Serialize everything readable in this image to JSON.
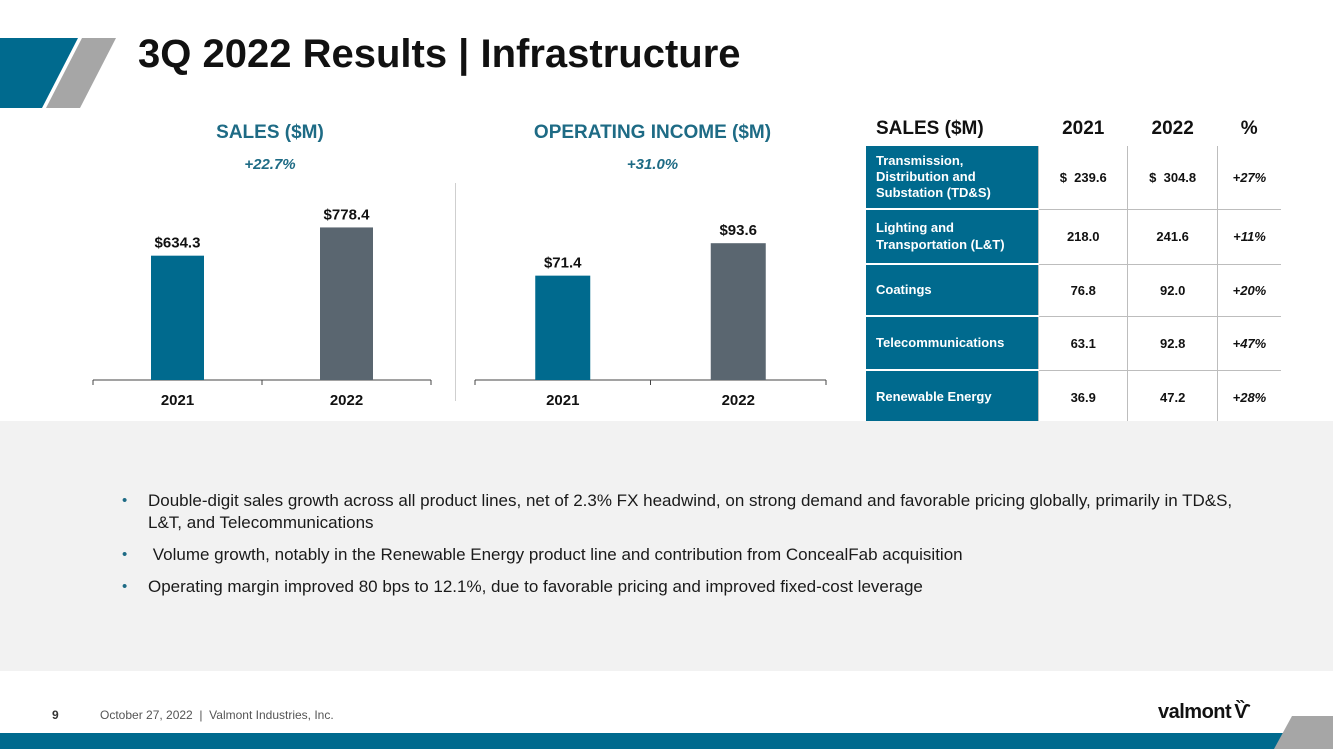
{
  "header": {
    "title": "3Q 2022 Results | Infrastructure"
  },
  "colors": {
    "teal": "#006a8e",
    "gray": "#5a6670",
    "title_teal": "#1e6b85",
    "panel": "#f2f2f2"
  },
  "chart_data": [
    {
      "type": "bar",
      "title": "SALES ($M)",
      "subtitle": "+22.7%",
      "categories": [
        "2021",
        "2022"
      ],
      "values": [
        634.3,
        778.4
      ],
      "value_labels": [
        "$634.3",
        "$778.4"
      ],
      "bar_colors": [
        "#006a8e",
        "#5a6670"
      ],
      "ylim": [
        0,
        1000
      ]
    },
    {
      "type": "bar",
      "title": "OPERATING INCOME ($M)",
      "subtitle": "+31.0%",
      "categories": [
        "2021",
        "2022"
      ],
      "values": [
        71.4,
        93.6
      ],
      "value_labels": [
        "$71.4",
        "$93.6"
      ],
      "bar_colors": [
        "#006a8e",
        "#5a6670"
      ],
      "ylim": [
        0,
        130
      ]
    }
  ],
  "table": {
    "headers": [
      "SALES ($M)",
      "2021",
      "2022",
      "%"
    ],
    "rows": [
      {
        "segment": "Transmission, Distribution and Substation (TD&S)",
        "v2021": "$  239.6",
        "v2022": "$  304.8",
        "pct": "+27%"
      },
      {
        "segment": "Lighting and Transportation (L&T)",
        "v2021": "218.0",
        "v2022": "241.6",
        "pct": "+11%"
      },
      {
        "segment": "Coatings",
        "v2021": "76.8",
        "v2022": "92.0",
        "pct": "+20%"
      },
      {
        "segment": "Telecommunications",
        "v2021": "63.1",
        "v2022": "92.8",
        "pct": "+47%"
      },
      {
        "segment": "Renewable Energy",
        "v2021": "36.9",
        "v2022": "47.2",
        "pct": "+28%"
      }
    ]
  },
  "bullets": [
    "Double-digit sales growth across all product lines, net of 2.3% FX headwind, on strong demand and favorable pricing globally, primarily in TD&S, L&T, and Telecommunications",
    " Volume growth, notably in the Renewable Energy product line and contribution from ConcealFab acquisition",
    "Operating margin improved 80 bps to 12.1%, due to favorable pricing and improved fixed-cost leverage"
  ],
  "bullet_glyph": "•",
  "footer": {
    "page_number": "9",
    "text": "October 27, 2022  |  Valmont Industries, Inc.",
    "logo_text": "valmont",
    "logo_mark": "Ѷ"
  }
}
